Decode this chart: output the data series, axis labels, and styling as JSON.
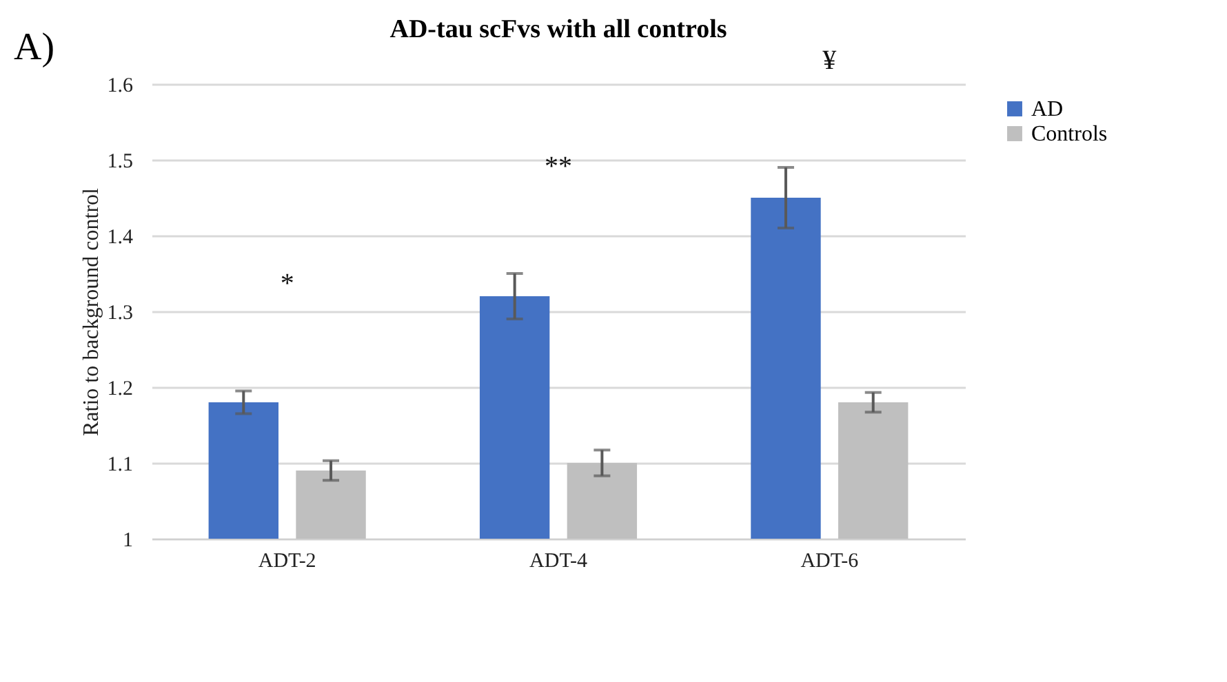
{
  "chart_data": {
    "type": "bar",
    "title": "AD-tau scFvs with all controls",
    "ylabel": "Ratio to background control",
    "categories": [
      "ADT-2",
      "ADT-4",
      "ADT-6"
    ],
    "series": [
      {
        "name": "AD",
        "color": "#4472c4",
        "values": [
          1.18,
          1.32,
          1.45
        ],
        "errors": [
          0.015,
          0.03,
          0.04
        ]
      },
      {
        "name": "Controls",
        "color": "#bfbfbf",
        "values": [
          1.09,
          1.1,
          1.18
        ],
        "errors": [
          0.013,
          0.017,
          0.013
        ]
      }
    ],
    "ylim": [
      1,
      1.6
    ],
    "yticks": [
      1,
      1.1,
      1.2,
      1.3,
      1.4,
      1.5,
      1.6
    ],
    "grid": "y",
    "legend": "right",
    "annotations": [
      "A)",
      "*",
      "**",
      "¥"
    ]
  }
}
